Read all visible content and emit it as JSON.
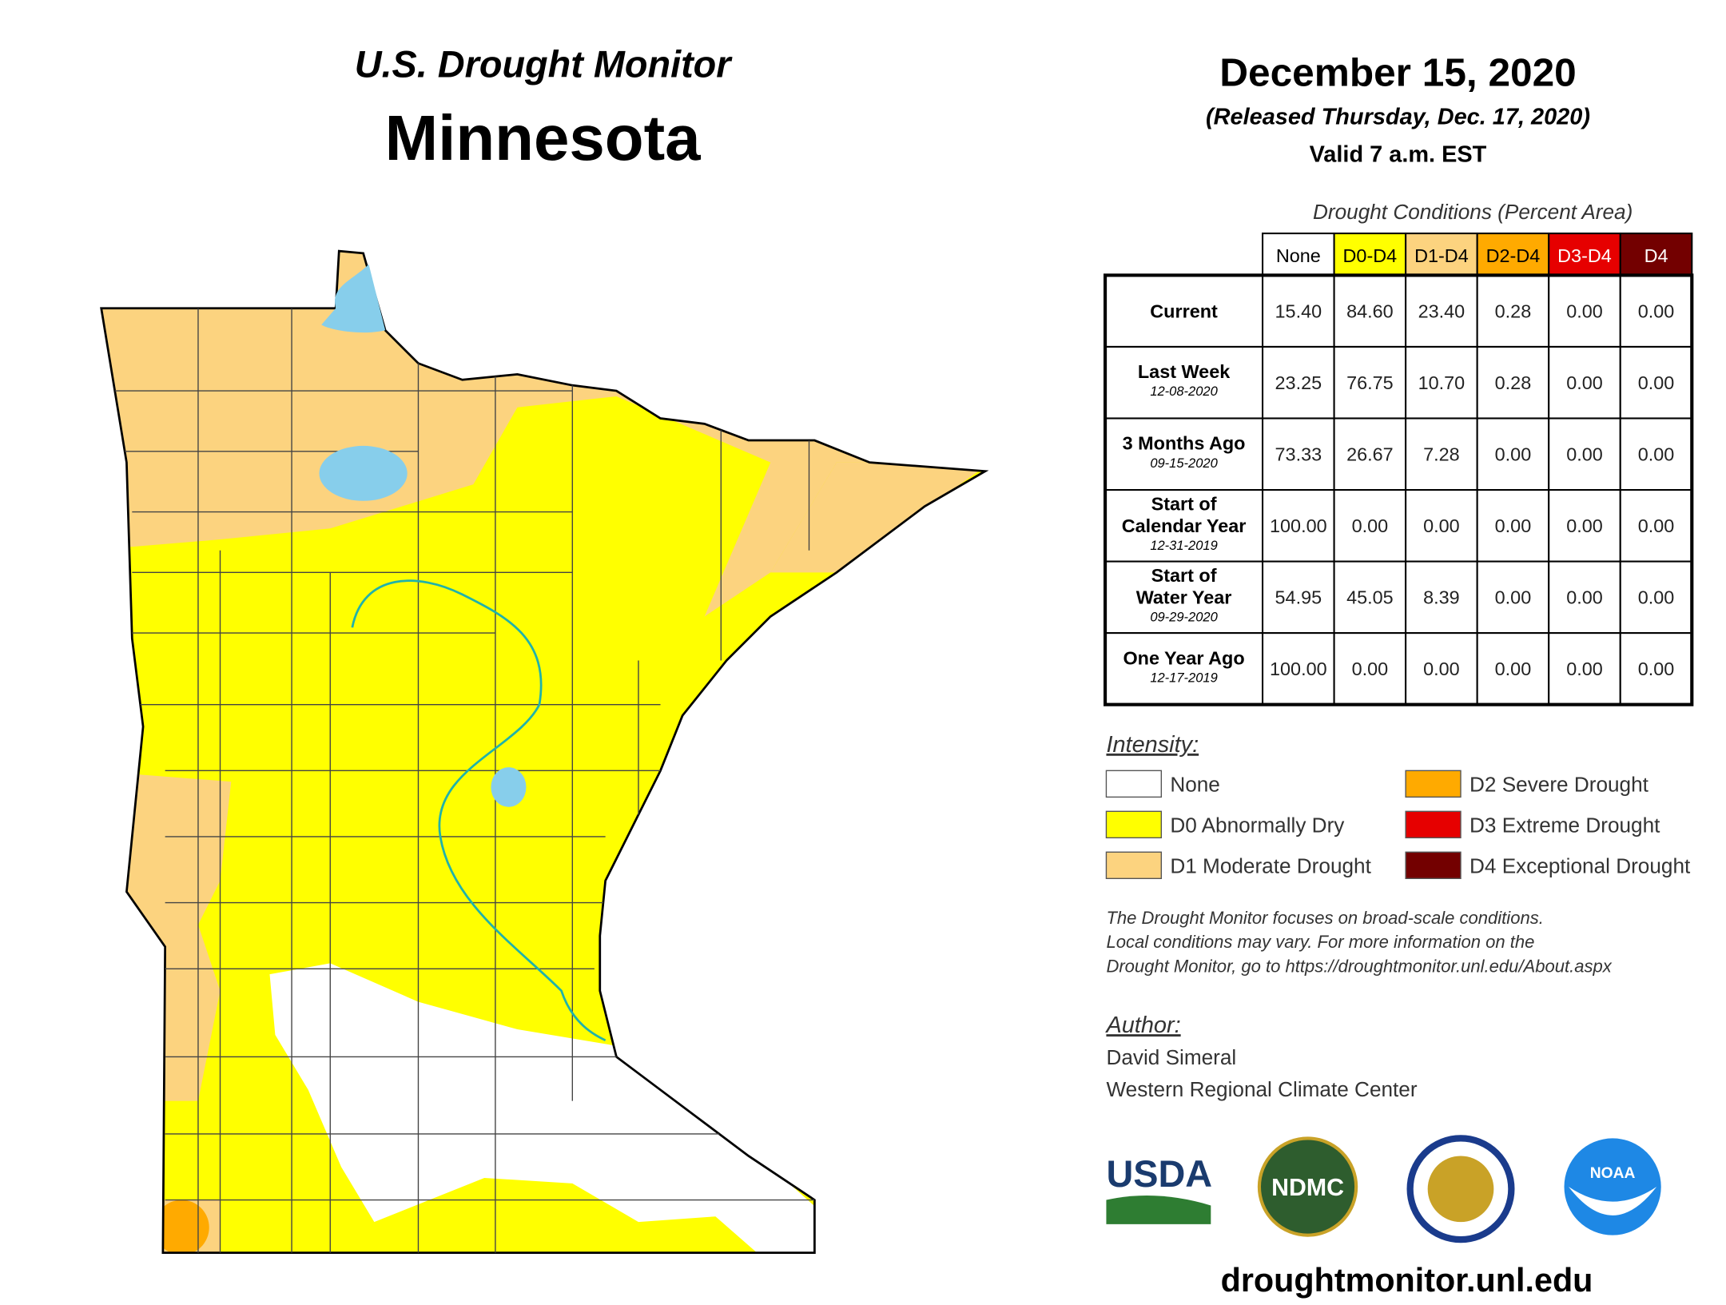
{
  "header": {
    "title": "U.S. Drought Monitor",
    "state": "Minnesota",
    "date": "December 15, 2020",
    "released": "(Released Thursday, Dec. 17, 2020)",
    "valid": "Valid 7 a.m. EST"
  },
  "table": {
    "caption": "Drought Conditions (Percent Area)",
    "columns": [
      {
        "label": "None",
        "color": "#ffffff",
        "text": "#000000"
      },
      {
        "label": "D0-D4",
        "color": "#ffff00",
        "text": "#000000"
      },
      {
        "label": "D1-D4",
        "color": "#fcd37f",
        "text": "#000000"
      },
      {
        "label": "D2-D4",
        "color": "#ffaa00",
        "text": "#000000"
      },
      {
        "label": "D3-D4",
        "color": "#e60000",
        "text": "#ffffff"
      },
      {
        "label": "D4",
        "color": "#730000",
        "text": "#ffffff"
      }
    ],
    "rows": [
      {
        "label": [
          "Current"
        ],
        "values": [
          "15.40",
          "84.60",
          "23.40",
          "0.28",
          "0.00",
          "0.00"
        ]
      },
      {
        "label": [
          "Last Week"
        ],
        "date": "12-08-2020",
        "values": [
          "23.25",
          "76.75",
          "10.70",
          "0.28",
          "0.00",
          "0.00"
        ]
      },
      {
        "label": [
          "3 Months Ago"
        ],
        "date": "09-15-2020",
        "values": [
          "73.33",
          "26.67",
          "7.28",
          "0.00",
          "0.00",
          "0.00"
        ]
      },
      {
        "label": [
          "Start of",
          "Calendar Year"
        ],
        "date": "12-31-2019",
        "values": [
          "100.00",
          "0.00",
          "0.00",
          "0.00",
          "0.00",
          "0.00"
        ]
      },
      {
        "label": [
          "Start of",
          "Water Year"
        ],
        "date": "09-29-2020",
        "values": [
          "54.95",
          "45.05",
          "8.39",
          "0.00",
          "0.00",
          "0.00"
        ]
      },
      {
        "label": [
          "One Year Ago"
        ],
        "date": "12-17-2019",
        "values": [
          "100.00",
          "0.00",
          "0.00",
          "0.00",
          "0.00",
          "0.00"
        ]
      }
    ]
  },
  "legend": {
    "title": "Intensity:",
    "items": [
      {
        "label": "None",
        "color": "#ffffff"
      },
      {
        "label": "D0 Abnormally Dry",
        "color": "#ffff00"
      },
      {
        "label": "D1 Moderate Drought",
        "color": "#fcd37f"
      },
      {
        "label": "D2 Severe Drought",
        "color": "#ffaa00"
      },
      {
        "label": "D3 Extreme Drought",
        "color": "#e60000"
      },
      {
        "label": "D4 Exceptional Drought",
        "color": "#730000"
      }
    ]
  },
  "note": [
    "The Drought Monitor focuses on broad-scale conditions.",
    "Local conditions may vary. For more information on the",
    "Drought Monitor, go to https://droughtmonitor.unl.edu/About.aspx"
  ],
  "author": {
    "title": "Author:",
    "lines": [
      "David Simeral",
      "Western Regional Climate Center"
    ]
  },
  "logos": {
    "usda": "USDA",
    "ndmc": "NDMC",
    "noaa": "NOAA"
  },
  "url": "droughtmonitor.unl.edu"
}
